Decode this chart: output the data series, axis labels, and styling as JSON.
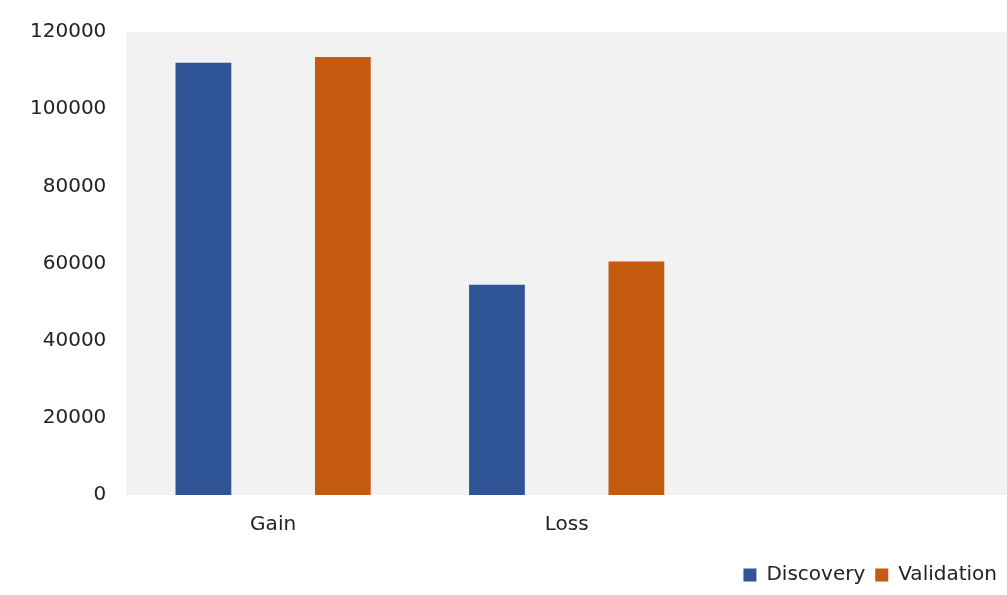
{
  "chart_data": {
    "type": "bar",
    "categories": [
      "Gain",
      "Loss",
      null
    ],
    "series": [
      {
        "name": "Discovery",
        "color": "#2f5597",
        "values": [
          112000,
          54500,
          null
        ]
      },
      {
        "name": "Validation",
        "color": "#c55a11",
        "values": [
          113500,
          60500,
          null
        ]
      }
    ],
    "ylim": [
      0,
      120000
    ],
    "yticks": [
      0,
      20000,
      40000,
      60000,
      80000,
      100000,
      120000
    ],
    "grid": false,
    "legend": "bottom"
  }
}
